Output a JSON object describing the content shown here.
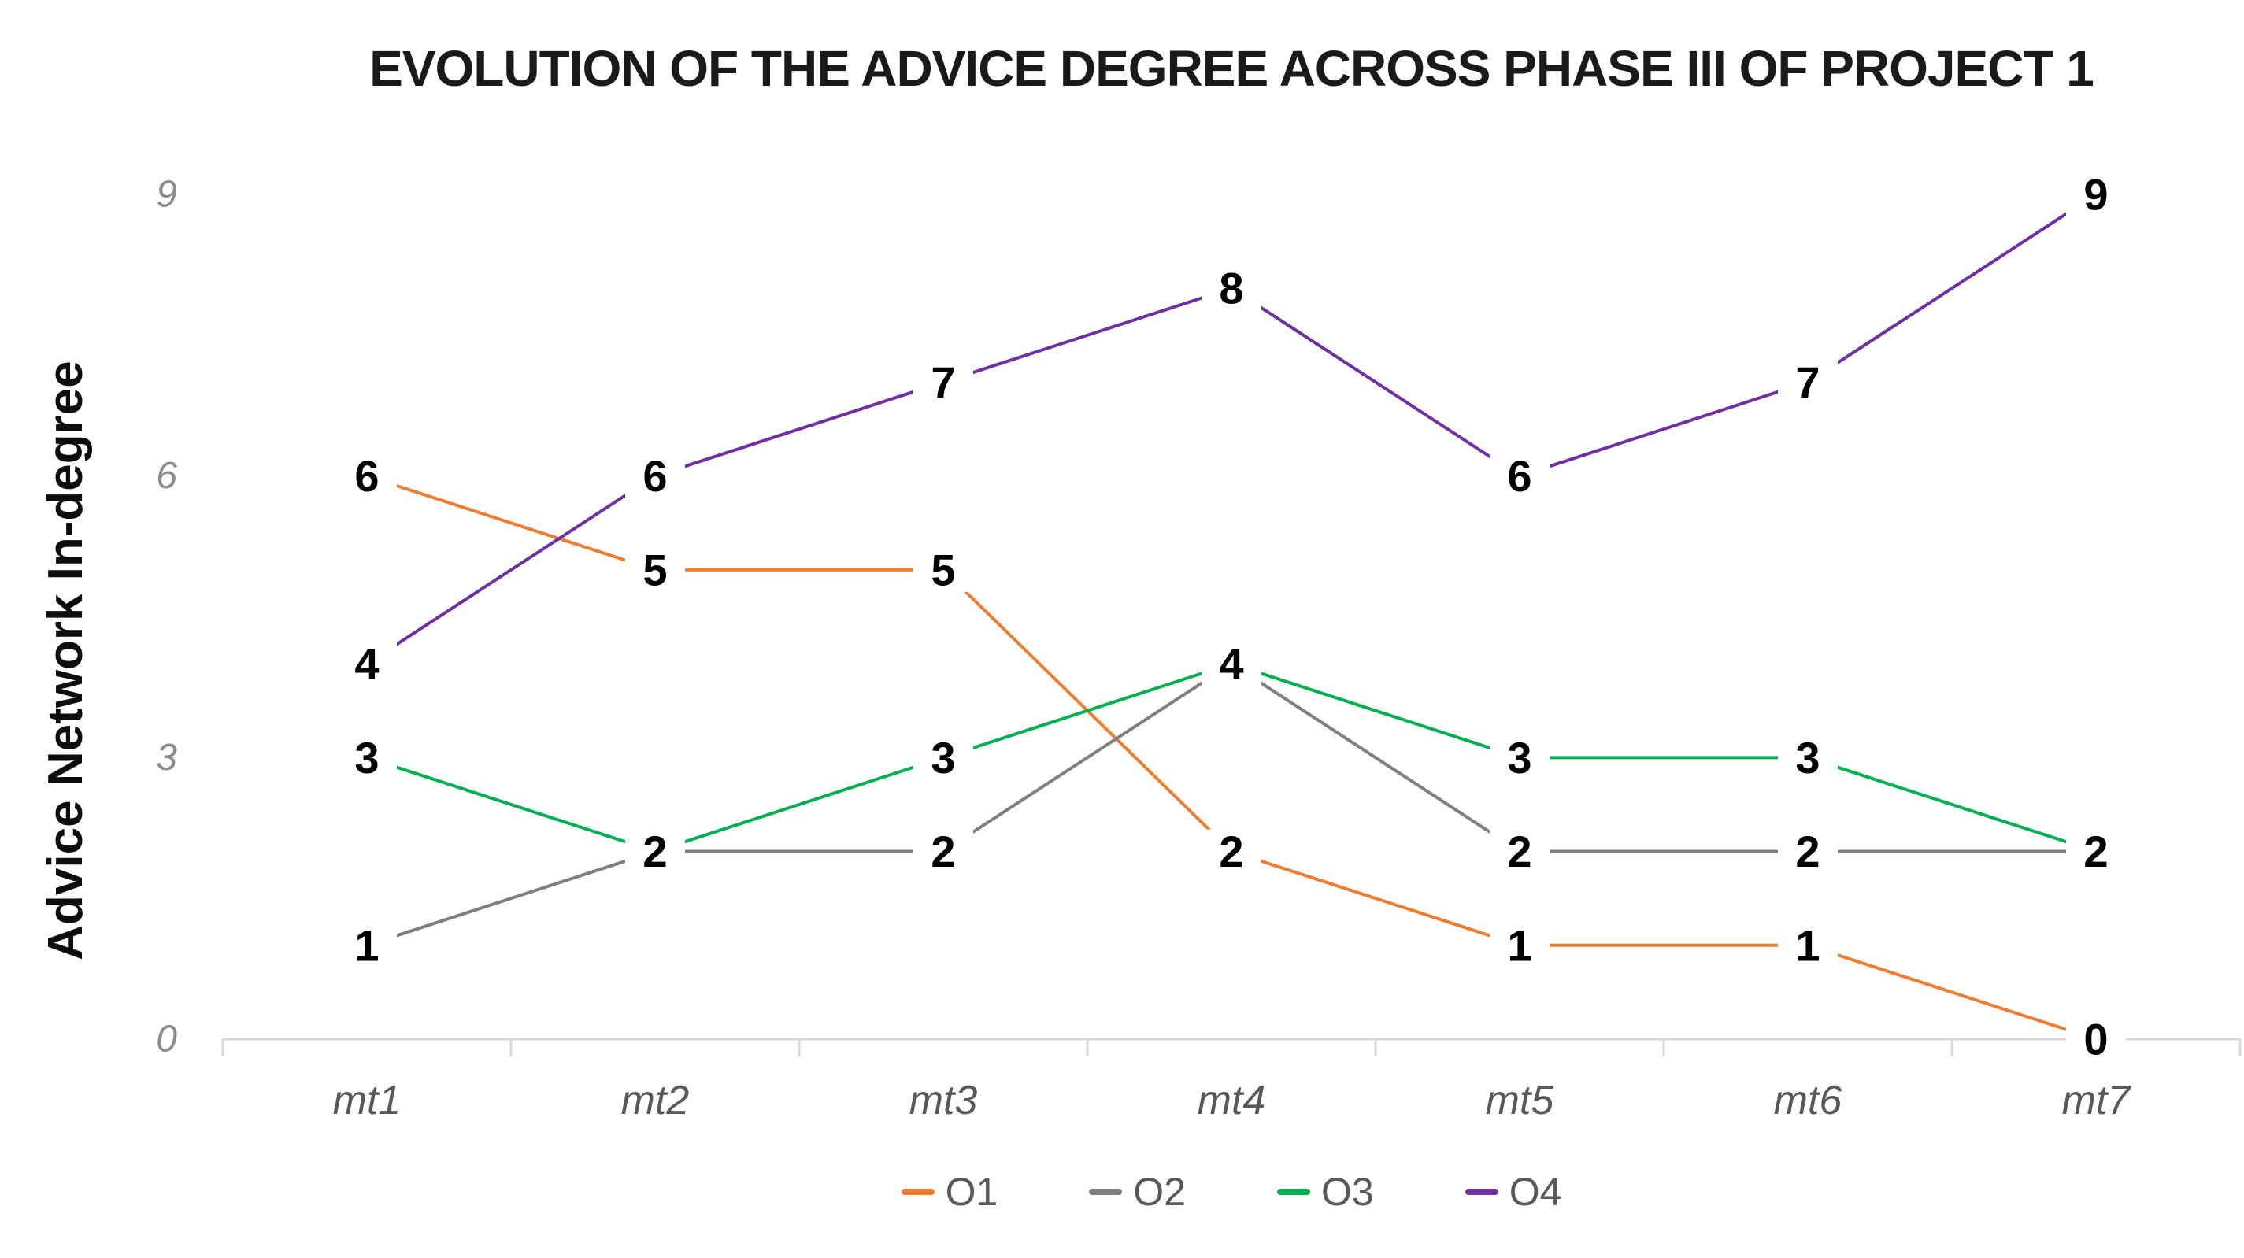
{
  "chart_data": {
    "type": "line",
    "title": "EVOLUTION OF THE ADVICE DEGREE ACROSS PHASE III OF PROJECT 1",
    "ylabel": "Advice Network In-degree",
    "xlabel": "",
    "categories": [
      "mt1",
      "mt2",
      "mt3",
      "mt4",
      "mt5",
      "mt6",
      "mt7"
    ],
    "series": [
      {
        "name": "O1",
        "color": "#ED7D31",
        "values": [
          6,
          5,
          5,
          2,
          1,
          1,
          0
        ]
      },
      {
        "name": "O2",
        "color": "#7F7F7F",
        "values": [
          1,
          2,
          2,
          4,
          2,
          2,
          2
        ]
      },
      {
        "name": "O3",
        "color": "#00B050",
        "values": [
          3,
          2,
          3,
          4,
          3,
          3,
          2
        ]
      },
      {
        "name": "O4",
        "color": "#7030A0",
        "values": [
          4,
          6,
          7,
          8,
          6,
          7,
          9
        ]
      }
    ],
    "yticks": [
      0,
      3,
      6,
      9
    ],
    "ylim": [
      0,
      9
    ],
    "grid": false,
    "data_labels": true,
    "legend_position": "bottom",
    "colors": {
      "title_text": "#1a1a1a",
      "axis_line": "#d9d9d9",
      "ytick_text": "#8c8c8c",
      "xtick_text": "#595959",
      "legend_text": "#595959",
      "data_label_text": "#000000"
    }
  }
}
